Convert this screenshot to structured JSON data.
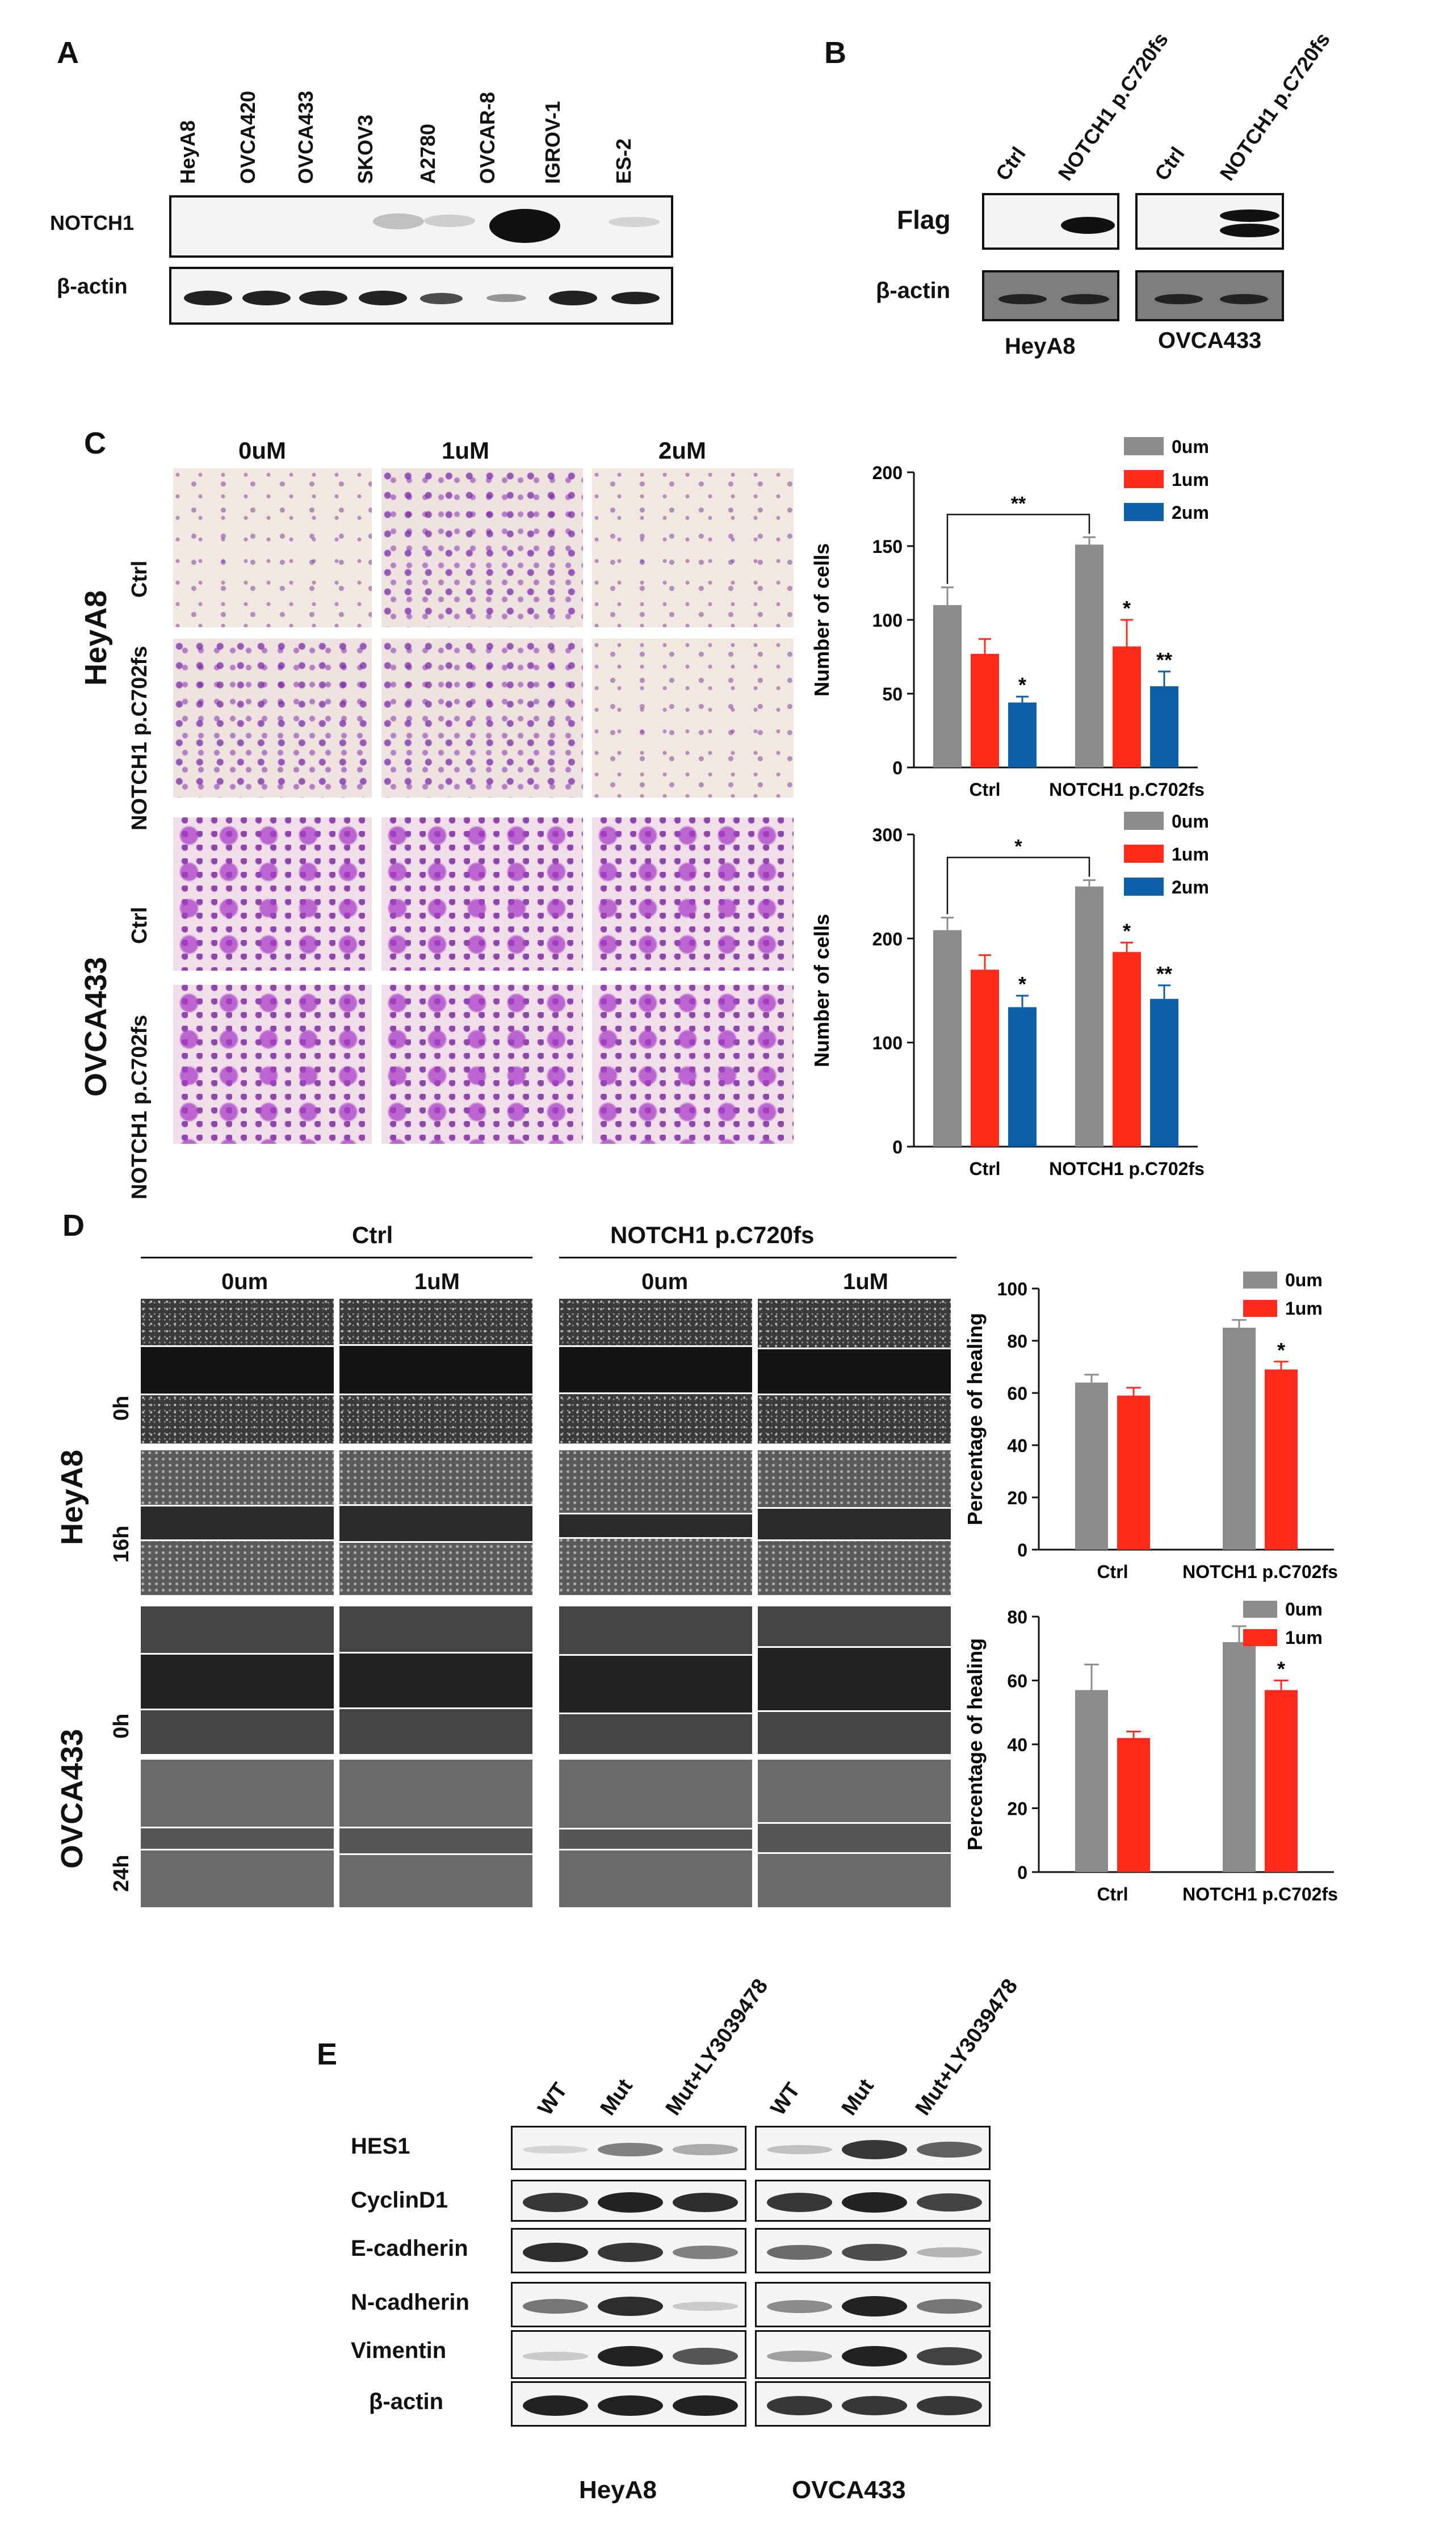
{
  "panels": {
    "A": {
      "letter": "A",
      "lanes": [
        "HeyA8",
        "OVCA420",
        "OVCA433",
        "SKOV3",
        "A2780",
        "OVCAR-8",
        "IGROV-1",
        "ES-2"
      ],
      "rows": [
        "NOTCH1",
        "β-actin"
      ]
    },
    "B": {
      "letter": "B",
      "lanes": [
        "Ctrl",
        "NOTCH1 p.C720fs",
        "Ctrl",
        "NOTCH1 p.C720fs"
      ],
      "rows": [
        "Flag",
        "β-actin"
      ],
      "groups": [
        "HeyA8",
        "OVCA433"
      ]
    },
    "C": {
      "letter": "C",
      "columns": [
        "0uM",
        "1uM",
        "2uM"
      ],
      "cell_lines": [
        "HeyA8",
        "OVCA433"
      ],
      "rows": [
        "Ctrl",
        "NOTCH1 p.C702fs"
      ]
    },
    "D": {
      "letter": "D",
      "groups": [
        "Ctrl",
        "NOTCH1 p.C720fs"
      ],
      "columns": [
        "0um",
        "1uM",
        "0um",
        "1uM"
      ],
      "cell_lines": [
        "HeyA8",
        "OVCA433"
      ],
      "times_heya8": [
        "0h",
        "16h"
      ],
      "times_ovca433": [
        "0h",
        "24h"
      ]
    },
    "E": {
      "letter": "E",
      "lanes": [
        "WT",
        "Mut",
        "Mut+LY3039478",
        "WT",
        "Mut",
        "Mut+LY3039478"
      ],
      "rows": [
        "HES1",
        "CyclinD1",
        "E-cadherin",
        "N-cadherin",
        "Vimentin",
        "β-actin"
      ],
      "groups": [
        "HeyA8",
        "OVCA433"
      ]
    }
  },
  "colors": {
    "gray": "#8c8c8c",
    "red": "#ff2a1a",
    "blue": "#0b5ea8"
  },
  "chart_data": [
    {
      "type": "bar",
      "panel": "C-top",
      "categories": [
        "Ctrl",
        "NOTCH1 p.C702fs"
      ],
      "series": [
        {
          "name": "0um",
          "values": [
            110,
            151
          ],
          "errors": [
            12,
            5
          ]
        },
        {
          "name": "1um",
          "values": [
            77,
            82
          ],
          "errors": [
            10,
            18
          ]
        },
        {
          "name": "2um",
          "values": [
            44,
            55
          ],
          "errors": [
            4,
            10
          ]
        }
      ],
      "sig": [
        [
          "",
          ""
        ],
        [
          "",
          "*"
        ],
        [
          "*",
          "**"
        ]
      ],
      "bracket": "**",
      "ylabel": "Number of cells",
      "ylim": [
        0,
        200
      ],
      "yticks": [
        0,
        50,
        100,
        150,
        200
      ],
      "legend": "top-right"
    },
    {
      "type": "bar",
      "panel": "C-bottom",
      "categories": [
        "Ctrl",
        "NOTCH1 p.C702fs"
      ],
      "series": [
        {
          "name": "0um",
          "values": [
            208,
            250
          ],
          "errors": [
            12,
            6
          ]
        },
        {
          "name": "1um",
          "values": [
            170,
            187
          ],
          "errors": [
            14,
            9
          ]
        },
        {
          "name": "2um",
          "values": [
            134,
            142
          ],
          "errors": [
            11,
            13
          ]
        }
      ],
      "sig": [
        [
          "",
          ""
        ],
        [
          "",
          "*"
        ],
        [
          "*",
          "**"
        ]
      ],
      "bracket": "*",
      "ylabel": "Number of cells",
      "ylim": [
        0,
        300
      ],
      "yticks": [
        0,
        100,
        200,
        300
      ],
      "legend": "top-right"
    },
    {
      "type": "bar",
      "panel": "D-top",
      "categories": [
        "Ctrl",
        "NOTCH1 p.C702fs"
      ],
      "series": [
        {
          "name": "0um",
          "values": [
            64,
            85
          ],
          "errors": [
            3,
            3
          ]
        },
        {
          "name": "1um",
          "values": [
            59,
            69
          ],
          "errors": [
            3,
            3
          ]
        }
      ],
      "sig": [
        [
          "",
          ""
        ],
        [
          "",
          "*"
        ]
      ],
      "bracket": "",
      "ylabel": "Percentage of healing",
      "ylim": [
        0,
        100
      ],
      "yticks": [
        0,
        20,
        40,
        60,
        80,
        100
      ],
      "legend": "top-right"
    },
    {
      "type": "bar",
      "panel": "D-bottom",
      "categories": [
        "Ctrl",
        "NOTCH1 p.C702fs"
      ],
      "series": [
        {
          "name": "0um",
          "values": [
            57,
            72
          ],
          "errors": [
            8,
            5
          ]
        },
        {
          "name": "1um",
          "values": [
            42,
            57
          ],
          "errors": [
            2,
            3
          ]
        }
      ],
      "sig": [
        [
          "",
          ""
        ],
        [
          "",
          "*"
        ]
      ],
      "bracket": "",
      "ylabel": "Percentage of healing",
      "ylim": [
        0,
        80
      ],
      "yticks": [
        0,
        20,
        40,
        60,
        80
      ],
      "legend": "top-right"
    }
  ]
}
